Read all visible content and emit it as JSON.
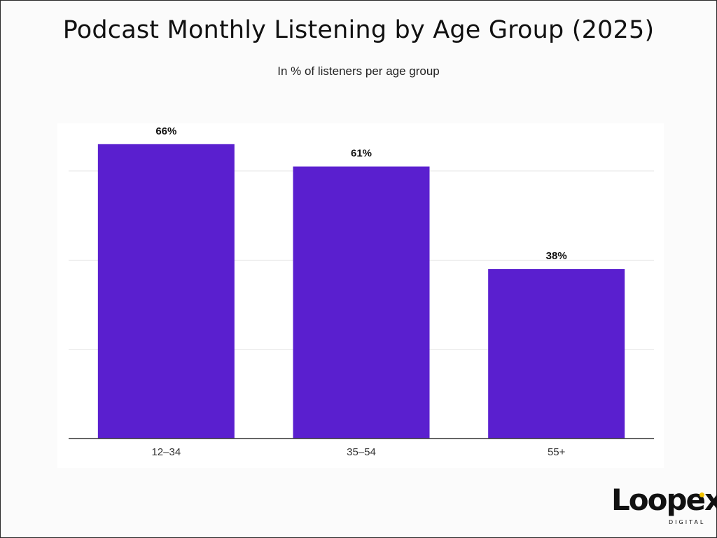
{
  "chart_data": {
    "type": "bar",
    "title": "Podcast Monthly Listening by Age Group (2025)",
    "subtitle": "In % of listeners per age group",
    "categories": [
      "12–34",
      "35–54",
      "55+"
    ],
    "values": [
      66,
      61,
      38
    ],
    "value_labels": [
      "66%",
      "61%",
      "38%"
    ],
    "xlabel": "",
    "ylabel": "",
    "ylim": [
      0,
      75
    ],
    "gridlines": [
      20,
      40,
      60
    ],
    "grid": true,
    "bar_color": "#5a1fcf"
  },
  "brand": {
    "name": "Loopex",
    "tagline": "DIGITAL",
    "accent_color": "#f2c200"
  }
}
